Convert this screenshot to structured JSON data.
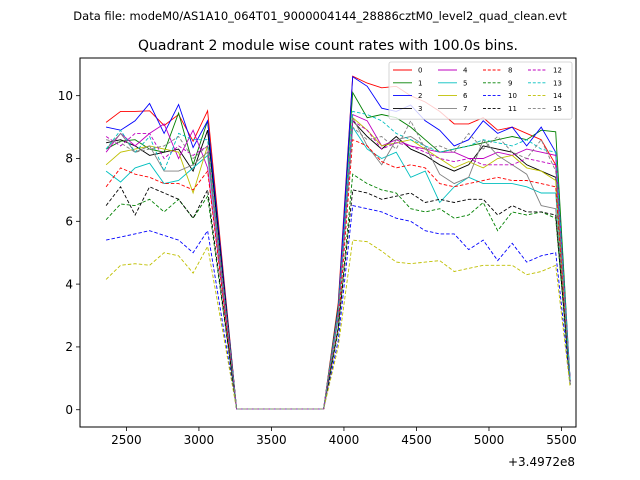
{
  "header": {
    "suptitle": "Data file: modeM0/AS1A10_064T01_9000004144_28886cztM0_level2_quad_clean.evt"
  },
  "chart_data": {
    "type": "line",
    "title": "Quadrant 2 module wise count rates with 100.0s bins.",
    "xlabel": "",
    "ylabel": "",
    "x_offset_label": "+3.4972e8",
    "xlim": [
      2180,
      5600
    ],
    "ylim": [
      -0.55,
      11.2
    ],
    "xticks": [
      2500,
      3000,
      3500,
      4000,
      4500,
      5000,
      5500
    ],
    "xtick_labels": [
      "2500",
      "3000",
      "3500",
      "4000",
      "4500",
      "5000",
      "5500"
    ],
    "yticks": [
      0,
      2,
      4,
      6,
      8,
      10
    ],
    "ytick_labels": [
      "0",
      "2",
      "4",
      "6",
      "8",
      "10"
    ],
    "grid": false,
    "legend_position": "top-right",
    "legend_columns": 4,
    "x": [
      2360,
      2460,
      2560,
      2660,
      2760,
      2860,
      2960,
      3060,
      3260,
      3360,
      3460,
      3560,
      3660,
      3760,
      3860,
      3960,
      4060,
      4160,
      4260,
      4360,
      4460,
      4560,
      4660,
      4760,
      4860,
      4960,
      5060,
      5160,
      5260,
      5360,
      5460,
      5560
    ],
    "series": [
      {
        "name": "0",
        "color": "#ff0000",
        "dash": "solid",
        "values": [
          9.15,
          9.5,
          9.5,
          9.52,
          9.05,
          9.4,
          8.55,
          9.52,
          0.02,
          0.02,
          0.02,
          0.02,
          0.02,
          0.02,
          0.02,
          3.4,
          10.62,
          10.4,
          10.25,
          10.3,
          10.0,
          9.8,
          9.5,
          9.1,
          9.1,
          9.3,
          8.9,
          9.0,
          8.8,
          8.6,
          7.8,
          0.8
        ]
      },
      {
        "name": "1",
        "color": "#008000",
        "dash": "solid",
        "values": [
          8.3,
          8.55,
          8.6,
          8.3,
          8.2,
          9.45,
          7.8,
          9.2,
          0.02,
          0.02,
          0.02,
          0.02,
          0.02,
          0.02,
          0.02,
          3.3,
          10.1,
          9.3,
          9.4,
          9.3,
          9.0,
          8.6,
          8.2,
          8.3,
          8.4,
          8.5,
          8.6,
          8.7,
          8.6,
          8.9,
          8.85,
          0.9
        ]
      },
      {
        "name": "2",
        "color": "#0000ff",
        "dash": "solid",
        "values": [
          9.0,
          8.9,
          9.2,
          9.75,
          8.8,
          9.72,
          8.35,
          9.2,
          0.02,
          0.02,
          0.02,
          0.02,
          0.02,
          0.02,
          0.02,
          3.2,
          10.6,
          10.3,
          9.6,
          9.5,
          9.7,
          9.2,
          8.9,
          8.4,
          8.6,
          9.2,
          8.8,
          9.0,
          8.4,
          9.0,
          8.2,
          0.9
        ]
      },
      {
        "name": "3",
        "color": "#000000",
        "dash": "solid",
        "values": [
          8.5,
          8.6,
          8.4,
          8.1,
          8.2,
          8.3,
          7.6,
          8.9,
          0.02,
          0.02,
          0.02,
          0.02,
          0.02,
          0.02,
          0.02,
          3.0,
          9.2,
          8.7,
          8.3,
          8.7,
          8.3,
          8.1,
          7.8,
          7.6,
          7.8,
          8.4,
          8.3,
          8.2,
          7.8,
          7.6,
          7.4,
          0.9
        ]
      },
      {
        "name": "4",
        "color": "#bf00bf",
        "dash": "solid",
        "values": [
          8.2,
          8.8,
          8.4,
          8.8,
          9.1,
          8.0,
          8.9,
          7.7,
          0.02,
          0.02,
          0.02,
          0.02,
          0.02,
          0.02,
          0.02,
          3.1,
          9.4,
          9.2,
          8.4,
          8.6,
          8.4,
          8.3,
          8.2,
          8.2,
          8.0,
          8.0,
          8.2,
          8.1,
          8.3,
          8.2,
          8.1,
          0.9
        ]
      },
      {
        "name": "5",
        "color": "#00bfbf",
        "dash": "solid",
        "values": [
          7.6,
          7.25,
          7.7,
          7.85,
          7.2,
          7.3,
          7.7,
          8.1,
          0.02,
          0.02,
          0.02,
          0.02,
          0.02,
          0.02,
          0.02,
          2.9,
          9.0,
          8.3,
          8.0,
          8.2,
          7.4,
          7.6,
          6.6,
          7.1,
          7.4,
          7.2,
          7.2,
          7.2,
          7.1,
          6.9,
          6.9,
          0.9
        ]
      },
      {
        "name": "6",
        "color": "#bfbf00",
        "dash": "solid",
        "values": [
          7.8,
          8.2,
          8.3,
          8.4,
          8.3,
          8.2,
          6.9,
          8.4,
          0.02,
          0.02,
          0.02,
          0.02,
          0.02,
          0.02,
          0.02,
          3.1,
          9.3,
          8.9,
          8.4,
          8.5,
          8.6,
          8.3,
          8.0,
          7.7,
          7.9,
          7.7,
          8.0,
          8.1,
          7.7,
          7.6,
          7.3,
          0.8
        ]
      },
      {
        "name": "7",
        "color": "#808080",
        "dash": "solid",
        "values": [
          8.3,
          8.8,
          8.2,
          8.4,
          7.6,
          7.6,
          7.8,
          8.2,
          0.02,
          0.02,
          0.02,
          0.02,
          0.02,
          0.02,
          0.02,
          3.0,
          9.3,
          8.4,
          7.8,
          8.6,
          8.7,
          8.4,
          7.5,
          7.2,
          7.4,
          8.6,
          8.1,
          7.8,
          7.5,
          6.5,
          6.4,
          0.9
        ]
      },
      {
        "name": "8",
        "color": "#ff0000",
        "dash": "dashed",
        "values": [
          7.1,
          7.7,
          7.5,
          7.4,
          7.2,
          7.2,
          7.0,
          7.6,
          0.02,
          0.02,
          0.02,
          0.02,
          0.02,
          0.02,
          0.02,
          2.6,
          8.6,
          8.4,
          7.9,
          7.7,
          7.8,
          7.7,
          7.2,
          7.1,
          7.2,
          7.3,
          7.4,
          7.3,
          7.3,
          7.2,
          7.1,
          0.8
        ]
      },
      {
        "name": "9",
        "color": "#008000",
        "dash": "dashed",
        "values": [
          6.05,
          6.55,
          6.5,
          6.7,
          6.3,
          6.7,
          6.1,
          6.8,
          0.02,
          0.02,
          0.02,
          0.02,
          0.02,
          0.02,
          0.02,
          2.5,
          7.5,
          7.2,
          7.0,
          6.9,
          6.4,
          6.3,
          6.4,
          6.1,
          6.2,
          6.6,
          5.7,
          6.3,
          6.2,
          6.3,
          6.1,
          0.8
        ]
      },
      {
        "name": "10",
        "color": "#0000ff",
        "dash": "dashed",
        "values": [
          5.4,
          5.5,
          5.6,
          5.7,
          5.55,
          5.4,
          5.0,
          5.7,
          0.02,
          0.02,
          0.02,
          0.02,
          0.02,
          0.02,
          0.02,
          2.2,
          6.5,
          6.4,
          6.3,
          6.1,
          6.0,
          5.7,
          5.6,
          5.6,
          5.1,
          5.4,
          4.75,
          5.3,
          4.7,
          4.9,
          5.0,
          0.8
        ]
      },
      {
        "name": "11",
        "color": "#000000",
        "dash": "dashed",
        "values": [
          6.5,
          7.1,
          6.2,
          7.1,
          6.9,
          6.7,
          6.1,
          7.0,
          0.02,
          0.02,
          0.02,
          0.02,
          0.02,
          0.02,
          0.02,
          2.6,
          7.0,
          6.9,
          6.7,
          6.8,
          6.9,
          6.6,
          6.7,
          6.6,
          6.7,
          6.7,
          6.2,
          6.5,
          6.3,
          6.3,
          6.2,
          0.8
        ]
      },
      {
        "name": "12",
        "color": "#bf00bf",
        "dash": "dashed",
        "values": [
          8.7,
          8.4,
          8.8,
          8.8,
          8.0,
          8.4,
          8.1,
          8.4,
          0.02,
          0.02,
          0.02,
          0.02,
          0.02,
          0.02,
          0.02,
          3.0,
          9.2,
          8.9,
          8.3,
          8.5,
          8.4,
          8.2,
          8.0,
          7.9,
          8.0,
          7.8,
          7.8,
          7.8,
          8.0,
          7.9,
          7.8,
          0.9
        ]
      },
      {
        "name": "13",
        "color": "#00bfbf",
        "dash": "dashed",
        "values": [
          8.3,
          8.9,
          8.2,
          8.7,
          7.6,
          8.8,
          8.6,
          8.6,
          0.02,
          0.02,
          0.02,
          0.02,
          0.02,
          0.02,
          0.02,
          3.1,
          9.5,
          9.4,
          9.2,
          8.8,
          8.6,
          8.4,
          8.2,
          8.3,
          8.4,
          8.6,
          8.5,
          8.4,
          8.6,
          8.3,
          8.2,
          0.9
        ]
      },
      {
        "name": "14",
        "color": "#bfbf00",
        "dash": "dashed",
        "values": [
          4.15,
          4.6,
          4.65,
          4.6,
          5.0,
          4.9,
          4.35,
          5.2,
          0.02,
          0.02,
          0.02,
          0.02,
          0.02,
          0.02,
          0.02,
          2.0,
          5.4,
          5.35,
          5.05,
          4.7,
          4.65,
          4.7,
          4.75,
          4.4,
          4.5,
          4.6,
          4.6,
          4.6,
          4.3,
          4.4,
          4.6,
          0.7
        ]
      },
      {
        "name": "15",
        "color": "#808080",
        "dash": "dashed",
        "values": [
          8.6,
          8.5,
          8.2,
          8.3,
          8.4,
          8.7,
          8.0,
          8.4,
          0.02,
          0.02,
          0.02,
          0.02,
          0.02,
          0.02,
          0.02,
          3.0,
          9.0,
          8.6,
          8.7,
          8.3,
          9.2,
          8.3,
          8.4,
          8.2,
          8.8,
          8.3,
          8.7,
          8.2,
          8.0,
          8.6,
          7.6,
          0.8
        ]
      }
    ]
  }
}
